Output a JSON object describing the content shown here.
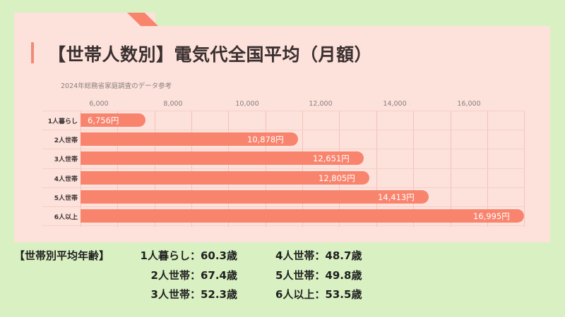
{
  "title": "【世帯人数別】電気代全国平均（月額）",
  "subtitle": "2024年総務省家庭調査のデータ参考",
  "colors": {
    "background": "#d9f0c2",
    "card": "#fde2dc",
    "bar": "#f9846e",
    "accent": "#f08a76"
  },
  "chart_data": {
    "type": "bar",
    "orientation": "horizontal",
    "title": "【世帯人数別】電気代全国平均（月額）",
    "subtitle": "2024年総務省家庭調査のデータ参考",
    "categories": [
      "1人暮らし",
      "2人世帯",
      "3人世帯",
      "4人世帯",
      "5人世帯",
      "6人以上"
    ],
    "values": [
      6756,
      10878,
      12651,
      12805,
      14413,
      16995
    ],
    "value_labels": [
      "6,756円",
      "10,878円",
      "12,651円",
      "12,805円",
      "14,413円",
      "16,995円"
    ],
    "unit": "円",
    "xlabel": "",
    "ylabel": "",
    "xlim": [
      5000,
      18000
    ],
    "tick_labels": [
      "6,000",
      "8,000",
      "10,000",
      "12,000",
      "14,000",
      "16,000"
    ],
    "grid": true,
    "legend": null
  },
  "ages": {
    "heading": "【世帯別平均年齢】",
    "items": [
      {
        "label": "1人暮らし：60.3歳"
      },
      {
        "label": "2人世帯：67.4歳"
      },
      {
        "label": "3人世帯：52.3歳"
      },
      {
        "label": "4人世帯：48.7歳"
      },
      {
        "label": "5人世帯：49.8歳"
      },
      {
        "label": "6人以上：53.5歳"
      }
    ]
  }
}
